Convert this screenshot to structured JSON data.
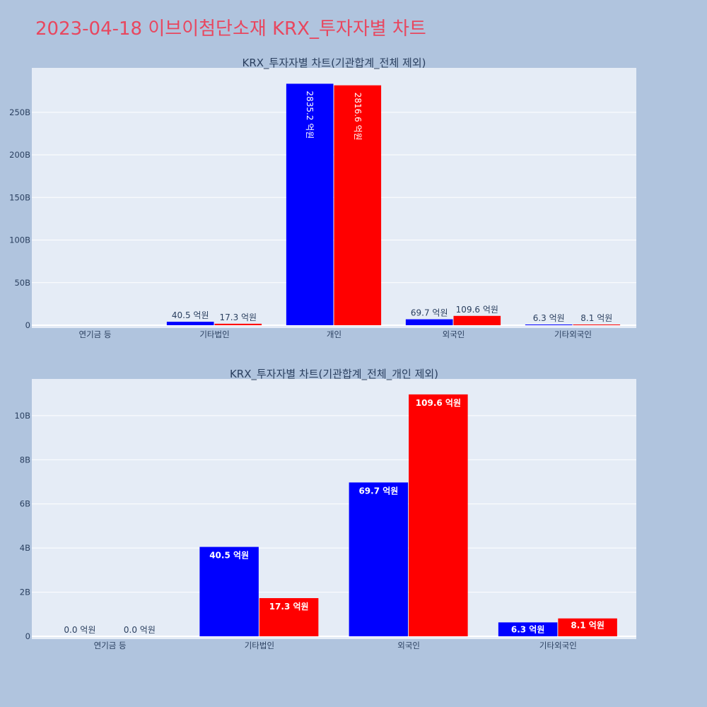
{
  "title": "2023-04-18 이브이첨단소재 KRX_투자자별 차트",
  "colors": {
    "background": "#b0c4de",
    "plot_bg": "#e5ecf6",
    "series_a": "#0000ff",
    "series_b": "#ff0000",
    "title": "#e8475f",
    "text": "#2a3f5f"
  },
  "chart_data": [
    {
      "type": "bar",
      "title": "KRX_투자자별 차트(기관합계_전체 제외)",
      "categories": [
        "연기금 등",
        "기타법인",
        "개인",
        "외국인",
        "기타외국인"
      ],
      "series": [
        {
          "color": "#0000ff",
          "values": [
            0,
            4.05,
            283.52,
            6.97,
            0.63
          ],
          "labels": [
            "",
            "40.5 억원",
            "2835.2 억원",
            "69.7 억원",
            "6.3 억원"
          ]
        },
        {
          "color": "#ff0000",
          "values": [
            0,
            1.73,
            281.66,
            10.96,
            0.81
          ],
          "labels": [
            "",
            "17.3 억원",
            "2816.6 억원",
            "109.6 억원",
            "8.1 억원"
          ]
        }
      ],
      "ylim": [
        0,
        298
      ],
      "yticks": [
        0,
        50,
        100,
        150,
        200,
        250
      ],
      "ytick_labels": [
        "0",
        "50B",
        "100B",
        "150B",
        "200B",
        "250B"
      ],
      "grid": true
    },
    {
      "type": "bar",
      "title": "KRX_투자자별 차트(기관합계_전체_개인 제외)",
      "categories": [
        "연기금 등",
        "기타법인",
        "외국인",
        "기타외국인"
      ],
      "series": [
        {
          "color": "#0000ff",
          "values": [
            0,
            4.05,
            6.97,
            0.63
          ],
          "labels": [
            "0.0 억원",
            "40.5 억원",
            "69.7 억원",
            "6.3 억원"
          ]
        },
        {
          "color": "#ff0000",
          "values": [
            0,
            1.73,
            10.96,
            0.81
          ],
          "labels": [
            "0.0 억원",
            "17.3 억원",
            "109.6 억원",
            "8.1 억원"
          ]
        }
      ],
      "ylim": [
        0,
        11.5
      ],
      "yticks": [
        0,
        2,
        4,
        6,
        8,
        10
      ],
      "ytick_labels": [
        "0",
        "2B",
        "4B",
        "6B",
        "8B",
        "10B"
      ],
      "grid": true
    }
  ]
}
